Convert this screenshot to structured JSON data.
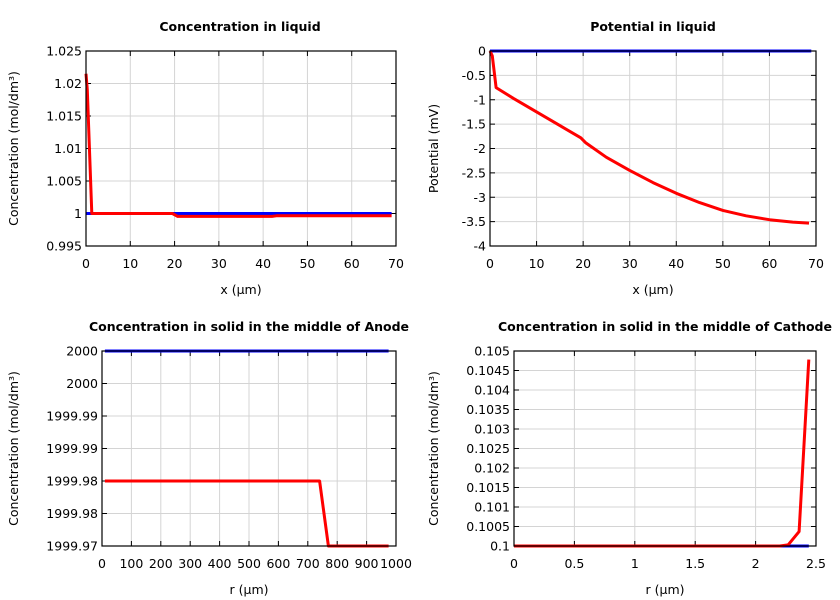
{
  "chart_data": [
    {
      "type": "line",
      "title": "Concentration in liquid",
      "xlabel": "x (µm)",
      "ylabel": "Concentration (mol/dm³)",
      "xlim": [
        0,
        70
      ],
      "ylim": [
        0.995,
        1.025
      ],
      "xticks": [
        0,
        10,
        20,
        30,
        40,
        50,
        60,
        70
      ],
      "xtick_labels": [
        "0",
        "10",
        "20",
        "30",
        "40",
        "50",
        "60",
        "70"
      ],
      "yticks": [
        0.995,
        1.0,
        1.005,
        1.01,
        1.015,
        1.02,
        1.025
      ],
      "ytick_labels": [
        "0.995",
        "1",
        "1.005",
        "1.01",
        "1.015",
        "1.02",
        "1.025"
      ],
      "grid": true,
      "series": [
        {
          "color": "#0000ff",
          "x": [
            0,
            69
          ],
          "y": [
            1.0,
            1.0
          ]
        },
        {
          "color": "#ff0000",
          "x": [
            0,
            0.3,
            1.3,
            19.5,
            20.7,
            42,
            43,
            69
          ],
          "y": [
            1.0215,
            1.019,
            1.0,
            1.0,
            0.99955,
            0.99955,
            0.99965,
            0.99965
          ]
        }
      ]
    },
    {
      "type": "line",
      "title": "Potential in liquid",
      "xlabel": "x (µm)",
      "ylabel": "Potential (mV)",
      "xlim": [
        0,
        70
      ],
      "ylim": [
        -4,
        0
      ],
      "xticks": [
        0,
        10,
        20,
        30,
        40,
        50,
        60,
        70
      ],
      "xtick_labels": [
        "0",
        "10",
        "20",
        "30",
        "40",
        "50",
        "60",
        "70"
      ],
      "yticks": [
        -4,
        -3.5,
        -3,
        -2.5,
        -2,
        -1.5,
        -1,
        -0.5,
        0
      ],
      "ytick_labels": [
        "-4",
        "-3.5",
        "-3",
        "-2.5",
        "-2",
        "-1.5",
        "-1",
        "-0.5",
        "0"
      ],
      "grid": true,
      "series": [
        {
          "color": "#0000ff",
          "x": [
            0,
            69
          ],
          "y": [
            0,
            0
          ]
        },
        {
          "color": "#ff0000",
          "x": [
            0,
            0.5,
            1.3,
            5,
            10,
            15,
            19.5,
            20.5,
            25,
            30,
            35,
            40,
            45,
            50,
            55,
            60,
            65,
            68.5
          ],
          "y": [
            0,
            -0.1,
            -0.75,
            -0.97,
            -1.25,
            -1.53,
            -1.78,
            -1.88,
            -2.18,
            -2.45,
            -2.7,
            -2.92,
            -3.11,
            -3.27,
            -3.38,
            -3.46,
            -3.51,
            -3.53
          ]
        }
      ]
    },
    {
      "type": "line",
      "title": "Concentration in solid in the middle of Anode",
      "xlabel": "r (µm)",
      "ylabel": "Concentration (mol/dm³)",
      "xlim": [
        0,
        1000
      ],
      "ylim": [
        1999.97,
        2000
      ],
      "xticks": [
        0,
        100,
        200,
        300,
        400,
        500,
        600,
        700,
        800,
        900,
        1000
      ],
      "xtick_labels": [
        "0",
        "100",
        "200",
        "300",
        "400",
        "500",
        "600",
        "700",
        "800",
        "900",
        "1000"
      ],
      "yticks": [
        1999.97,
        1999.975,
        1999.98,
        1999.985,
        1999.99,
        1999.995,
        2000
      ],
      "ytick_labels": [
        "1999.97",
        "1999.98",
        "1999.98",
        "1999.99",
        "1999.99",
        "2000",
        "2000"
      ],
      "grid": true,
      "series": [
        {
          "color": "#0000ff",
          "x": [
            10,
            975
          ],
          "y": [
            2000,
            2000
          ]
        },
        {
          "color": "#ff0000",
          "x": [
            10,
            740,
            770,
            975
          ],
          "y": [
            1999.98,
            1999.98,
            1999.97,
            1999.97
          ]
        }
      ]
    },
    {
      "type": "line",
      "title": "Concentration in solid in the middle of Cathode",
      "xlabel": "r (µm)",
      "ylabel": "Concentration (mol/dm³)",
      "xlim": [
        0,
        2.5
      ],
      "ylim": [
        0.1,
        0.105
      ],
      "xticks": [
        0,
        0.5,
        1,
        1.5,
        2,
        2.5
      ],
      "xtick_labels": [
        "0",
        "0.5",
        "1",
        "1.5",
        "2",
        "2.5"
      ],
      "yticks": [
        0.1,
        0.1005,
        0.101,
        0.1015,
        0.102,
        0.1025,
        0.103,
        0.1035,
        0.104,
        0.1045,
        0.105
      ],
      "ytick_labels": [
        "0.1",
        "0.1005",
        "0.101",
        "0.1015",
        "0.102",
        "0.1025",
        "0.103",
        "0.1035",
        "0.104",
        "0.1045",
        "0.105"
      ],
      "grid": true,
      "series": [
        {
          "color": "#0000ff",
          "x": [
            0,
            2.44
          ],
          "y": [
            0.1,
            0.1
          ]
        },
        {
          "color": "#ff0000",
          "x": [
            0,
            2.2,
            2.27,
            2.36,
            2.44
          ],
          "y": [
            0.1,
            0.1,
            0.10003,
            0.10037,
            0.10478
          ]
        }
      ]
    }
  ]
}
